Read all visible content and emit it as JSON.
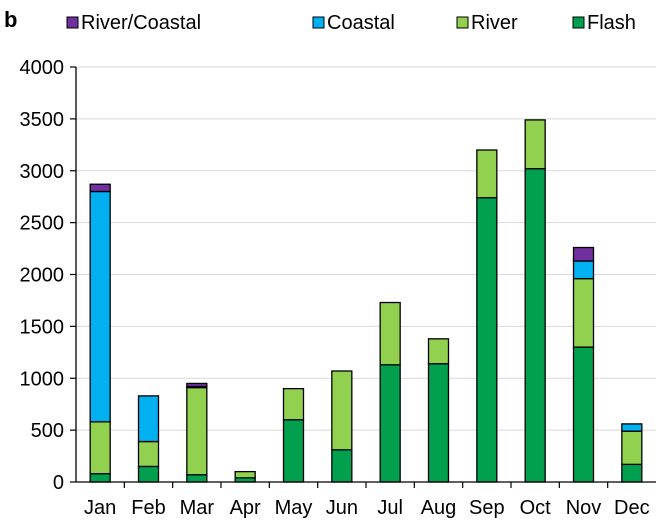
{
  "panel_label": "b",
  "chart_data": {
    "type": "bar",
    "stacked": true,
    "categories": [
      "Jan",
      "Feb",
      "Mar",
      "Apr",
      "May",
      "Jun",
      "Jul",
      "Aug",
      "Sep",
      "Oct",
      "Nov",
      "Dec"
    ],
    "series": [
      {
        "name": "Flash",
        "color": "#00a04f",
        "values": [
          80,
          150,
          70,
          40,
          600,
          310,
          1130,
          1140,
          2740,
          3020,
          1300,
          170
        ]
      },
      {
        "name": "River",
        "color": "#92d050",
        "values": [
          500,
          240,
          840,
          60,
          300,
          760,
          600,
          240,
          460,
          470,
          660,
          320
        ]
      },
      {
        "name": "Coastal",
        "color": "#00b0f0",
        "values": [
          2220,
          440,
          10,
          0,
          0,
          0,
          0,
          0,
          0,
          0,
          170,
          70
        ]
      },
      {
        "name": "River/Coastal",
        "color": "#7030a0",
        "values": [
          70,
          0,
          30,
          0,
          0,
          0,
          0,
          0,
          0,
          0,
          130,
          0
        ]
      }
    ],
    "legend_order": [
      "River/Coastal",
      "Coastal",
      "River",
      "Flash"
    ],
    "legend_position": "top",
    "ylim": [
      0,
      4000
    ],
    "yticks": [
      "0",
      "500",
      "1000",
      "1500",
      "2000",
      "2500",
      "3000",
      "3500",
      "4000"
    ],
    "ytick_values": [
      0,
      500,
      1000,
      1500,
      2000,
      2500,
      3000,
      3500,
      4000
    ],
    "grid": "horizontal",
    "grid_color": "#d9d9d9",
    "title": "",
    "xlabel": "",
    "ylabel": ""
  }
}
